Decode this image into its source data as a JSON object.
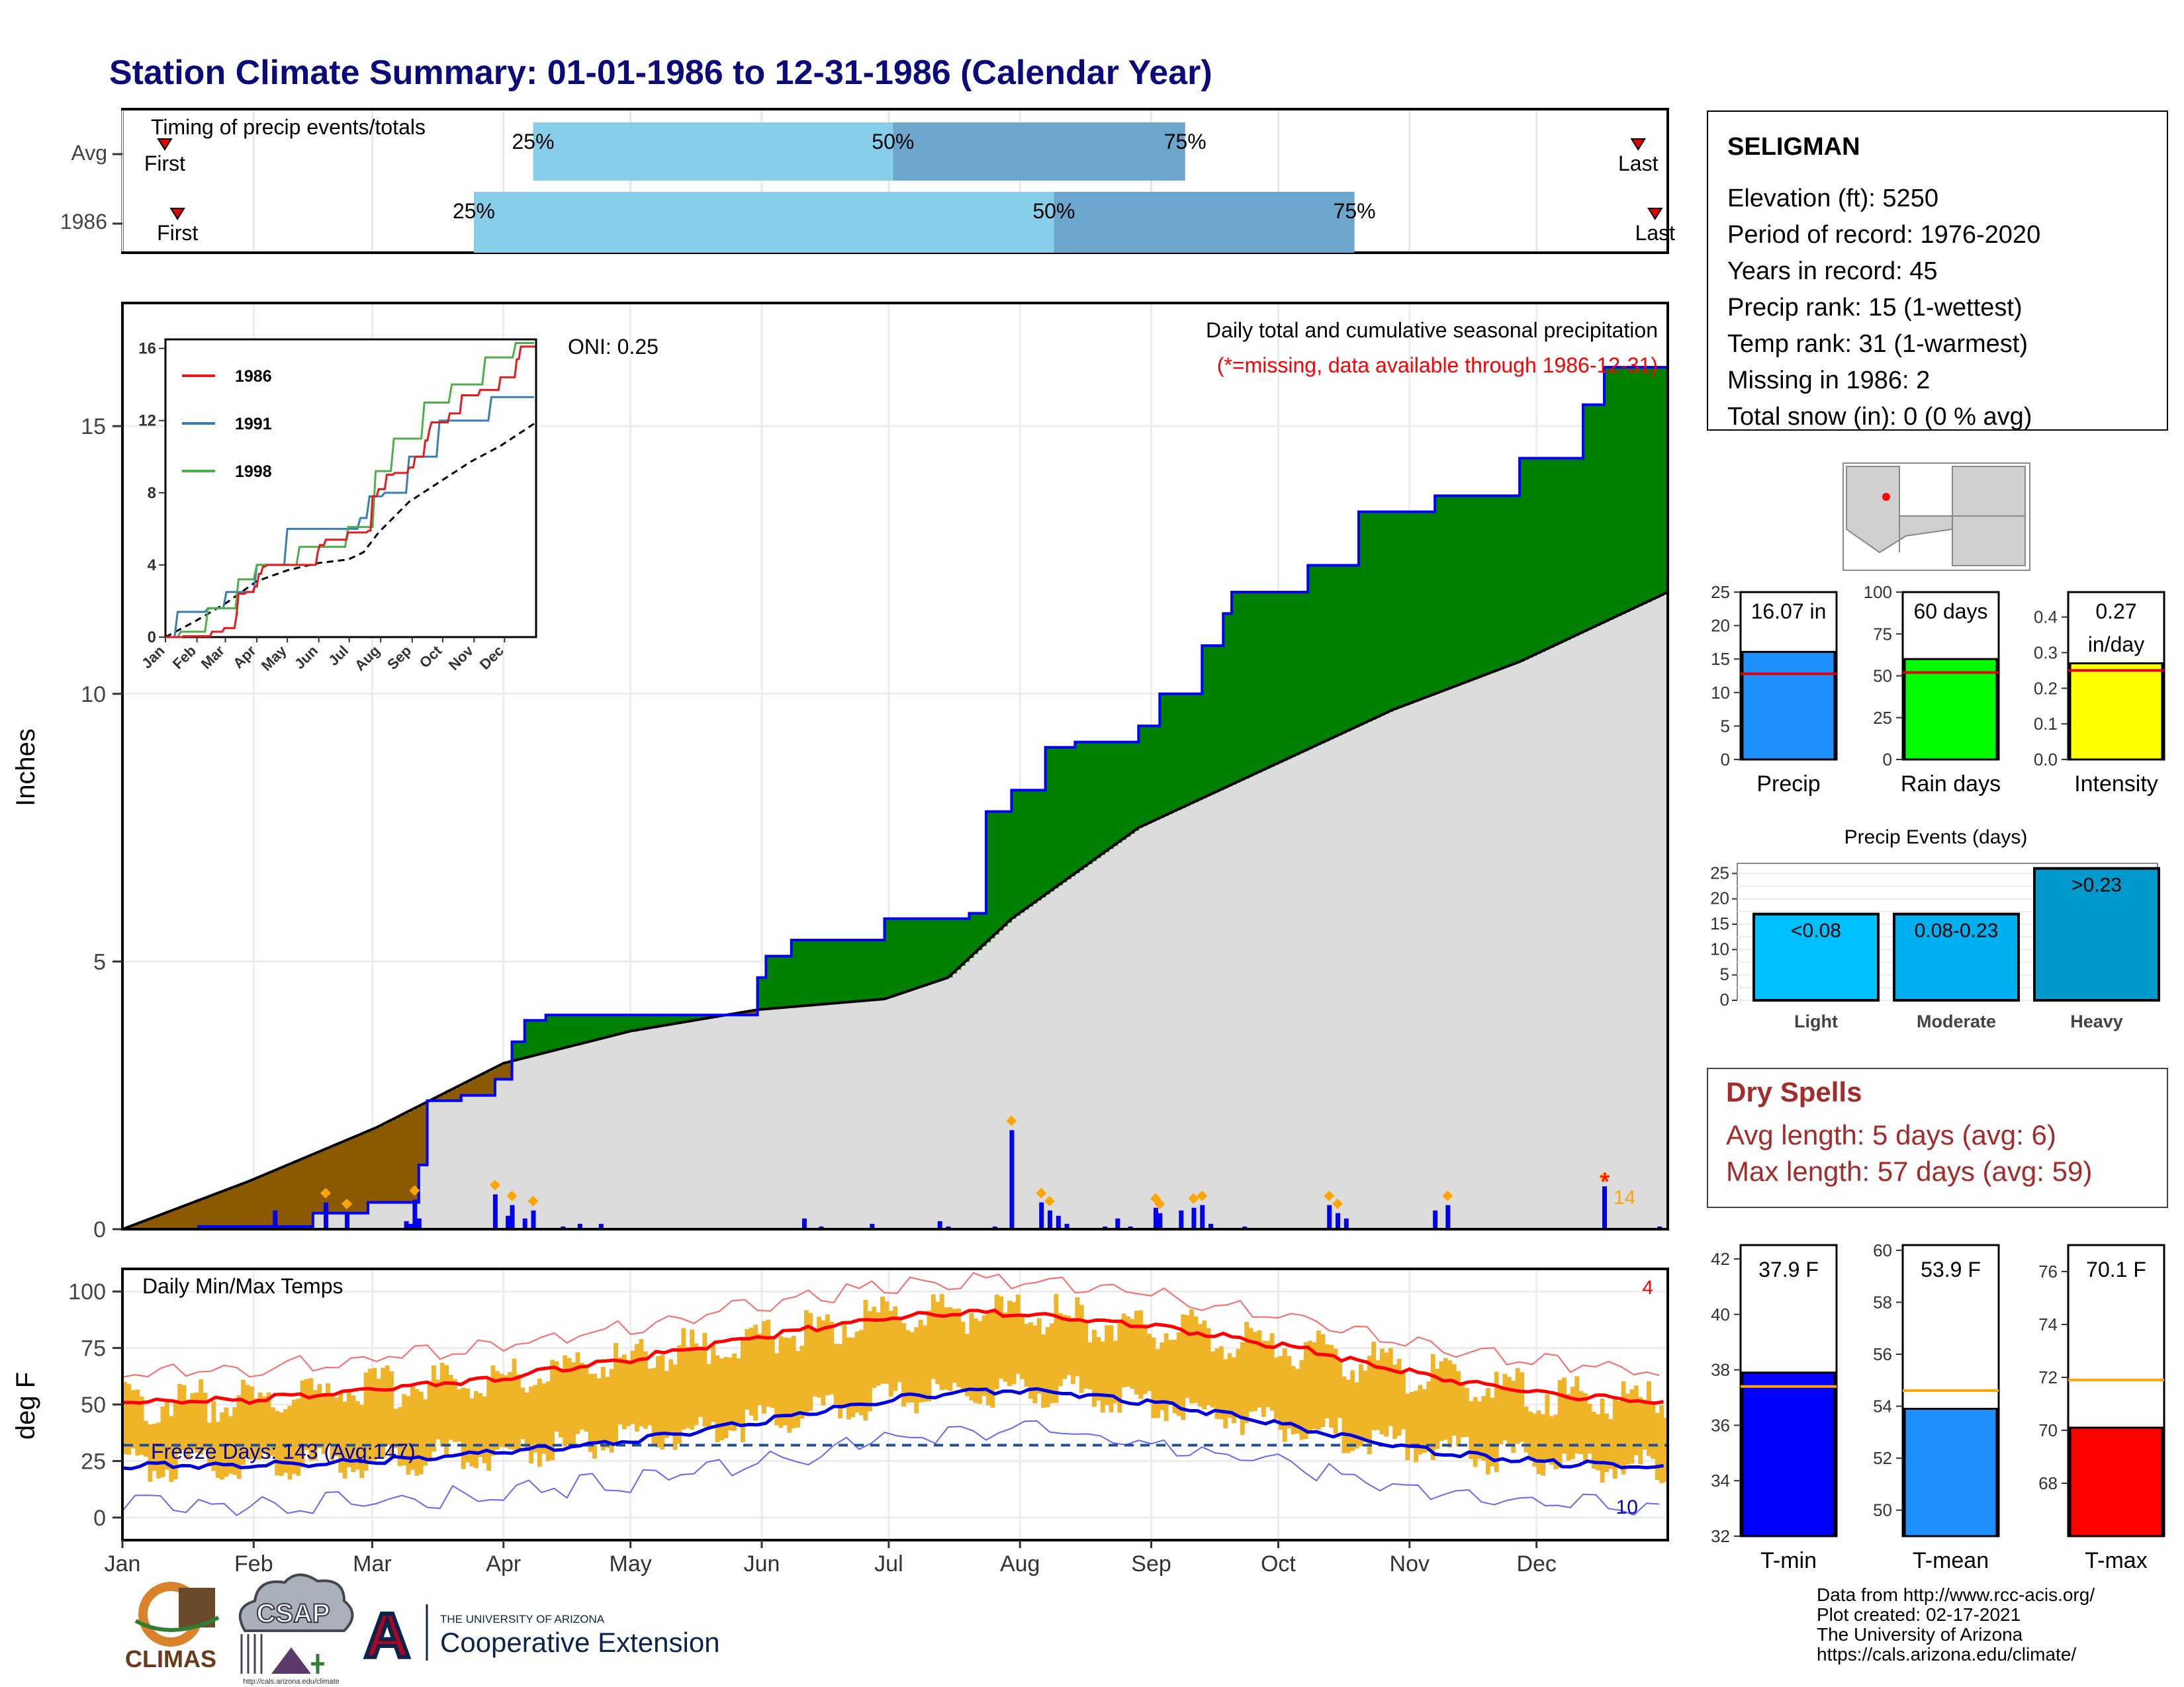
{
  "title": "Station Climate Summary: 01-01-1986 to 12-31-1986 (Calendar Year)",
  "colors": {
    "title": "#0a0a7a",
    "light_blue": "#87ceeb",
    "mid_blue": "#6ca6cd",
    "green": "#008000",
    "brown": "#8b5a00",
    "grey_fill": "#dcdcdc",
    "blue_line": "#0000ff",
    "red": "#ff0000",
    "orange": "#ffa500",
    "dry_red": "#a52a2a",
    "temp_bar": "#f0b429"
  },
  "timing_panel": {
    "label": "Timing of precip events/totals",
    "rows": [
      {
        "label": "Avg",
        "first_doy": 10,
        "last_doy": 358,
        "p25_doy": 97,
        "p50_doy": 182,
        "p75_doy": 251,
        "first_label": "First",
        "last_label": "Last",
        "p25_label": "25%",
        "p50_label": "50%",
        "p75_label": "75%"
      },
      {
        "label": "1986",
        "first_doy": 13,
        "last_doy": 362,
        "p25_doy": 83,
        "p50_doy": 220,
        "p75_doy": 291,
        "first_label": "First",
        "last_label": "Last",
        "p25_label": "25%",
        "p50_label": "50%",
        "p75_label": "75%"
      }
    ],
    "x_range": [
      0,
      365
    ]
  },
  "precip_panel": {
    "title_line1": "Daily total and cumulative seasonal precipitation",
    "title_line2": "(*=missing, data available through 1986-12-31)",
    "oni": "ONI: 0.25",
    "ylabel": "Inches",
    "y_ticks": [
      "0",
      "5",
      "10",
      "15"
    ],
    "ylim": [
      0,
      17.3
    ],
    "missing_count": "14"
  },
  "inset": {
    "y_ticks": [
      "0",
      "4",
      "8",
      "12",
      "16"
    ],
    "x_ticks": [
      "Jan",
      "Feb",
      "Mar",
      "Apr",
      "May",
      "Jun",
      "Jul",
      "Aug",
      "Sep",
      "Oct",
      "Nov",
      "Dec"
    ],
    "legend": [
      {
        "name": "1986",
        "color": "#e41a1c"
      },
      {
        "name": "1991",
        "color": "#377eb8"
      },
      {
        "name": "1998",
        "color": "#4daf4a"
      }
    ]
  },
  "temp_panel": {
    "title": "Daily Min/Max Temps",
    "freeze_label": "Freeze Days: 143 (Avg:147)",
    "ylabel": "deg F",
    "y_ticks": [
      "0",
      "25",
      "50",
      "75",
      "100"
    ],
    "ylim": [
      -10,
      110
    ],
    "count_high": "4",
    "count_low": "10"
  },
  "month_labels": [
    "Jan",
    "Feb",
    "Mar",
    "Apr",
    "May",
    "Jun",
    "Jul",
    "Aug",
    "Sep",
    "Oct",
    "Nov",
    "Dec"
  ],
  "station_box": {
    "name": "SELIGMAN",
    "lines": [
      "Elevation (ft): 5250",
      "Period of record: 1976-2020",
      "Years in record: 45",
      "Precip rank: 15 (1-wettest)",
      "Temp rank: 31 (1-warmest)",
      "Missing in 1986: 2",
      "Total snow (in): 0 (0 % avg)"
    ]
  },
  "precip_bars": [
    {
      "label": "Precip",
      "value_text": "16.07 in",
      "value": 16.07,
      "avg": 12.8,
      "ymax": 25,
      "ticks": [
        "0",
        "5",
        "10",
        "15",
        "20",
        "25"
      ],
      "color": "#1e90ff"
    },
    {
      "label": "Rain days",
      "value_text": "60 days",
      "value": 60,
      "avg": 52,
      "ymax": 100,
      "ticks": [
        "0",
        "25",
        "50",
        "75",
        "100"
      ],
      "color": "#00ff00"
    },
    {
      "label": "Intensity",
      "value_text": "0.27",
      "value_text2": "in/day",
      "value": 0.27,
      "avg": 0.25,
      "ymax": 0.47,
      "ticks": [
        "0.0",
        "0.1",
        "0.2",
        "0.3",
        "0.4"
      ],
      "color": "#ffff00"
    }
  ],
  "events": {
    "title": "Precip Events (days)",
    "categories": [
      "Light",
      "Moderate",
      "Heavy"
    ],
    "values": [
      17,
      17,
      26
    ],
    "labels": [
      "<0.08",
      "0.08-0.23",
      ">0.23"
    ],
    "colors": [
      "#00bfff",
      "#00afef",
      "#0099cc"
    ],
    "ticks": [
      "0",
      "5",
      "10",
      "15",
      "20",
      "25"
    ]
  },
  "dry_spells": {
    "title": "Dry Spells",
    "avg_line": "Avg length: 5 days (avg: 6)",
    "max_line": "Max length: 57 days (avg: 59)"
  },
  "temp_bars": [
    {
      "label": "T-min",
      "value_text": "37.9 F",
      "value": 37.9,
      "avg": 37.4,
      "ymin": 32,
      "ymax": 42.5,
      "ticks": [
        "32",
        "34",
        "36",
        "38",
        "40",
        "42"
      ],
      "color": "#0000ff"
    },
    {
      "label": "T-mean",
      "value_text": "53.9 F",
      "value": 53.9,
      "avg": 54.6,
      "ymin": 49,
      "ymax": 60.2,
      "ticks": [
        "50",
        "52",
        "54",
        "56",
        "58",
        "60"
      ],
      "color": "#1e90ff"
    },
    {
      "label": "T-max",
      "value_text": "70.1 F",
      "value": 70.1,
      "avg": 71.9,
      "ymin": 66,
      "ymax": 77,
      "ticks": [
        "68",
        "70",
        "72",
        "74",
        "76"
      ],
      "color": "#ff0000"
    }
  ],
  "logos": {
    "climas": "CLIMAS",
    "csap": "CSAP",
    "csap_url": "http://cals.arizona.edu/climate",
    "ua_small": "THE UNIVERSITY OF ARIZONA",
    "ua_big": "Cooperative Extension",
    "ua_letter": "A"
  },
  "footer": [
    "Data from http://www.rcc-acis.org/",
    "Plot created: 02-17-2021",
    "The University of Arizona",
    "https://cals.arizona.edu/climate/"
  ],
  "chart_data": {
    "type": "area",
    "title": "Station Climate Summary: 01-01-1986 to 12-31-1986 (Calendar Year)",
    "ylabel": "Inches",
    "ylim": [
      0,
      17.3
    ],
    "series": [
      {
        "name": "1986",
        "x_doy": [
          0,
          18,
          45,
          58,
          70,
          72,
          74,
          80,
          88,
          92,
          95,
          100,
          150,
          152,
          158,
          180,
          200,
          204,
          210,
          218,
          225,
          240,
          245,
          255,
          260,
          262,
          268,
          280,
          292,
          310,
          315,
          330,
          345,
          350,
          358,
          365
        ],
        "values": [
          0,
          0.05,
          0.3,
          0.5,
          1.2,
          2.4,
          2.4,
          2.5,
          2.8,
          3.5,
          3.9,
          4.0,
          4.7,
          5.1,
          5.4,
          5.8,
          5.9,
          7.8,
          8.2,
          9.0,
          9.1,
          9.4,
          10.0,
          10.9,
          11.5,
          11.9,
          11.9,
          12.4,
          13.4,
          13.7,
          13.7,
          14.4,
          15.4,
          16.1,
          16.1,
          16.1
        ]
      },
      {
        "name": "Average",
        "x_doy": [
          0,
          30,
          60,
          90,
          120,
          150,
          180,
          195,
          210,
          240,
          270,
          300,
          330,
          365
        ],
        "values": [
          0,
          0.9,
          1.9,
          3.1,
          3.7,
          4.1,
          4.3,
          4.7,
          5.8,
          7.5,
          8.6,
          9.7,
          10.6,
          11.9
        ]
      }
    ],
    "daily_precip_events": [
      {
        "doy": 36,
        "value": 0.35
      },
      {
        "doy": 48,
        "value": 0.5
      },
      {
        "doy": 53,
        "value": 0.3
      },
      {
        "doy": 67,
        "value": 0.15
      },
      {
        "doy": 68,
        "value": 0.1
      },
      {
        "doy": 69,
        "value": 0.55
      },
      {
        "doy": 70,
        "value": 0.2
      },
      {
        "doy": 88,
        "value": 0.65
      },
      {
        "doy": 91,
        "value": 0.25
      },
      {
        "doy": 92,
        "value": 0.45
      },
      {
        "doy": 95,
        "value": 0.2
      },
      {
        "doy": 97,
        "value": 0.35
      },
      {
        "doy": 104,
        "value": 0.05
      },
      {
        "doy": 108,
        "value": 0.1
      },
      {
        "doy": 113,
        "value": 0.1
      },
      {
        "doy": 161,
        "value": 0.2
      },
      {
        "doy": 165,
        "value": 0.05
      },
      {
        "doy": 177,
        "value": 0.1
      },
      {
        "doy": 193,
        "value": 0.15
      },
      {
        "doy": 195,
        "value": 0.05
      },
      {
        "doy": 206,
        "value": 0.05
      },
      {
        "doy": 210,
        "value": 1.85
      },
      {
        "doy": 217,
        "value": 0.5
      },
      {
        "doy": 219,
        "value": 0.35
      },
      {
        "doy": 221,
        "value": 0.25
      },
      {
        "doy": 223,
        "value": 0.1
      },
      {
        "doy": 232,
        "value": 0.05
      },
      {
        "doy": 235,
        "value": 0.2
      },
      {
        "doy": 238,
        "value": 0.05
      },
      {
        "doy": 244,
        "value": 0.4
      },
      {
        "doy": 245,
        "value": 0.3
      },
      {
        "doy": 250,
        "value": 0.35
      },
      {
        "doy": 253,
        "value": 0.4
      },
      {
        "doy": 255,
        "value": 0.45
      },
      {
        "doy": 257,
        "value": 0.1
      },
      {
        "doy": 265,
        "value": 0.05
      },
      {
        "doy": 285,
        "value": 0.45
      },
      {
        "doy": 287,
        "value": 0.3
      },
      {
        "doy": 289,
        "value": 0.2
      },
      {
        "doy": 310,
        "value": 0.35
      },
      {
        "doy": 313,
        "value": 0.45
      },
      {
        "doy": 350,
        "value": 0.8
      },
      {
        "doy": 363,
        "value": 0.05
      }
    ],
    "temperature": {
      "avg_max": {
        "x_doy": [
          0,
          30,
          60,
          90,
          120,
          150,
          180,
          200,
          220,
          250,
          280,
          310,
          340,
          365
        ],
        "values": [
          51,
          52,
          57,
          62,
          70,
          80,
          88,
          91,
          89,
          83,
          74,
          62,
          54,
          51
        ]
      },
      "avg_min": {
        "x_doy": [
          0,
          30,
          60,
          90,
          120,
          150,
          180,
          200,
          220,
          250,
          280,
          310,
          340,
          365
        ],
        "values": [
          23,
          23,
          25,
          29,
          34,
          42,
          52,
          56,
          56,
          49,
          39,
          29,
          24,
          22
        ]
      },
      "freeze_threshold": 32
    }
  }
}
